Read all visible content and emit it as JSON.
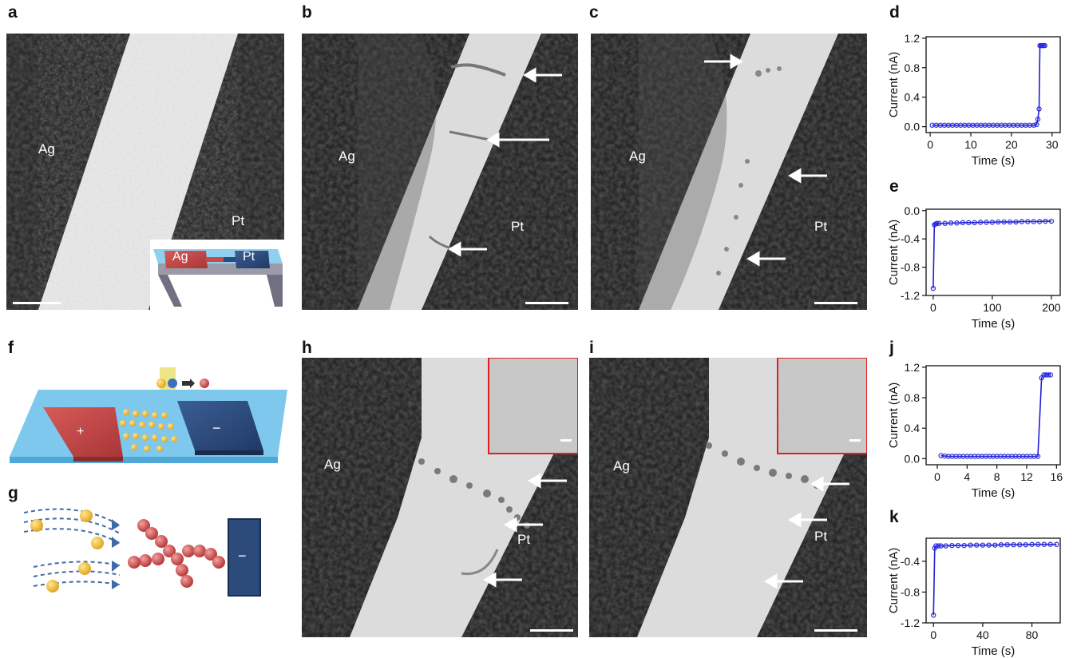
{
  "panel_letters": {
    "a": "a",
    "b": "b",
    "c": "c",
    "d": "d",
    "e": "e",
    "f": "f",
    "g": "g",
    "h": "h",
    "i": "i",
    "j": "j",
    "k": "k"
  },
  "labels": {
    "ag": "Ag",
    "pt": "Pt",
    "plus": "+",
    "minus": "−"
  },
  "colors": {
    "line": "#1f1fd6",
    "marker": "#2a2ae0",
    "ag_pad": "#c94a4a",
    "pt_pad": "#2c4a7a",
    "substrate": "#7ec8ee",
    "arrow": "#ffffff",
    "inset_border": "#e02020"
  },
  "chart_data": [
    {
      "id": "d",
      "type": "line",
      "xlabel": "Time (s)",
      "ylabel": "Current (nA)",
      "xlim": [
        -1,
        32
      ],
      "ylim": [
        -0.08,
        1.22
      ],
      "xticks": [
        "0",
        "10",
        "20",
        "30"
      ],
      "xtick_values": [
        0,
        10,
        20,
        30
      ],
      "yticks": [
        "0.0",
        "0.4",
        "0.8",
        "1.2"
      ],
      "ytick_values": [
        0,
        0.4,
        0.8,
        1.2
      ],
      "series": [
        {
          "x": [
            0.5,
            1.5,
            2.5,
            3.5,
            4.5,
            5.5,
            6.5,
            7.5,
            8.5,
            9.5,
            10.5,
            11.5,
            12.5,
            13.5,
            14.5,
            15.5,
            16.5,
            17.5,
            18.5,
            19.5,
            20.5,
            21.5,
            22.5,
            23.5,
            24.5,
            25.5,
            26.2,
            26.5,
            26.8,
            27.0,
            27.3,
            27.6,
            27.9,
            28.2
          ],
          "y": [
            0.02,
            0.02,
            0.02,
            0.02,
            0.02,
            0.02,
            0.02,
            0.02,
            0.02,
            0.02,
            0.02,
            0.02,
            0.02,
            0.02,
            0.02,
            0.02,
            0.02,
            0.02,
            0.02,
            0.02,
            0.02,
            0.02,
            0.02,
            0.02,
            0.02,
            0.02,
            0.03,
            0.1,
            0.24,
            1.1,
            1.1,
            1.1,
            1.1,
            1.1
          ]
        }
      ]
    },
    {
      "id": "e",
      "type": "line",
      "xlabel": "Time (s)",
      "ylabel": "Current (nA)",
      "xlim": [
        -12,
        215
      ],
      "ylim": [
        -1.2,
        0.02
      ],
      "xticks": [
        "0",
        "100",
        "200"
      ],
      "xtick_values": [
        0,
        100,
        200
      ],
      "yticks": [
        "0.0",
        "-0.4",
        "-0.8",
        "-1.2"
      ],
      "ytick_values": [
        0,
        -0.4,
        -0.8,
        -1.2
      ],
      "series": [
        {
          "x": [
            0,
            2,
            4,
            6,
            10,
            20,
            30,
            40,
            50,
            60,
            70,
            80,
            90,
            100,
            110,
            120,
            130,
            140,
            150,
            160,
            170,
            180,
            190,
            200
          ],
          "y": [
            -1.1,
            -0.2,
            -0.19,
            -0.18,
            -0.18,
            -0.18,
            -0.175,
            -0.175,
            -0.17,
            -0.17,
            -0.17,
            -0.165,
            -0.165,
            -0.165,
            -0.16,
            -0.16,
            -0.16,
            -0.16,
            -0.155,
            -0.155,
            -0.155,
            -0.155,
            -0.15,
            -0.15
          ]
        }
      ]
    },
    {
      "id": "j",
      "type": "line",
      "xlabel": "Time (s)",
      "ylabel": "Current (nA)",
      "xlim": [
        -1.5,
        16.5
      ],
      "ylim": [
        -0.08,
        1.22
      ],
      "xticks": [
        "0",
        "4",
        "8",
        "12",
        "16"
      ],
      "xtick_values": [
        0,
        4,
        8,
        12,
        16
      ],
      "yticks": [
        "0.0",
        "0.4",
        "0.8",
        "1.2"
      ],
      "ytick_values": [
        0,
        0.4,
        0.8,
        1.2
      ],
      "series": [
        {
          "x": [
            0.5,
            1,
            1.5,
            2,
            2.5,
            3,
            3.5,
            4,
            4.5,
            5,
            5.5,
            6,
            6.5,
            7,
            7.5,
            8,
            8.5,
            9,
            9.5,
            10,
            10.5,
            11,
            11.5,
            12,
            12.5,
            13,
            13.5,
            14,
            14.3,
            14.6,
            14.9,
            15.2
          ],
          "y": [
            0.04,
            0.035,
            0.03,
            0.03,
            0.03,
            0.03,
            0.03,
            0.03,
            0.03,
            0.03,
            0.03,
            0.03,
            0.03,
            0.03,
            0.03,
            0.03,
            0.03,
            0.03,
            0.03,
            0.03,
            0.03,
            0.03,
            0.03,
            0.03,
            0.03,
            0.03,
            0.03,
            1.06,
            1.1,
            1.1,
            1.1,
            1.1
          ]
        }
      ]
    },
    {
      "id": "k",
      "type": "line",
      "xlabel": "Time (s)",
      "ylabel": "Current (nA)",
      "xlim": [
        -6,
        103
      ],
      "ylim": [
        -1.2,
        -0.1
      ],
      "xticks": [
        "0",
        "40",
        "80"
      ],
      "xtick_values": [
        0,
        40,
        80
      ],
      "yticks": [
        "-0.4",
        "-0.8",
        "-1.2"
      ],
      "ytick_values": [
        -0.4,
        -0.8,
        -1.2
      ],
      "series": [
        {
          "x": [
            0,
            1,
            2,
            4,
            6,
            10,
            15,
            20,
            25,
            30,
            35,
            40,
            45,
            50,
            55,
            60,
            65,
            70,
            75,
            80,
            85,
            90,
            95,
            100
          ],
          "y": [
            -1.1,
            -0.23,
            -0.2,
            -0.2,
            -0.2,
            -0.2,
            -0.195,
            -0.195,
            -0.195,
            -0.19,
            -0.19,
            -0.19,
            -0.19,
            -0.19,
            -0.185,
            -0.185,
            -0.185,
            -0.185,
            -0.185,
            -0.18,
            -0.18,
            -0.18,
            -0.18,
            -0.18
          ]
        }
      ]
    }
  ]
}
